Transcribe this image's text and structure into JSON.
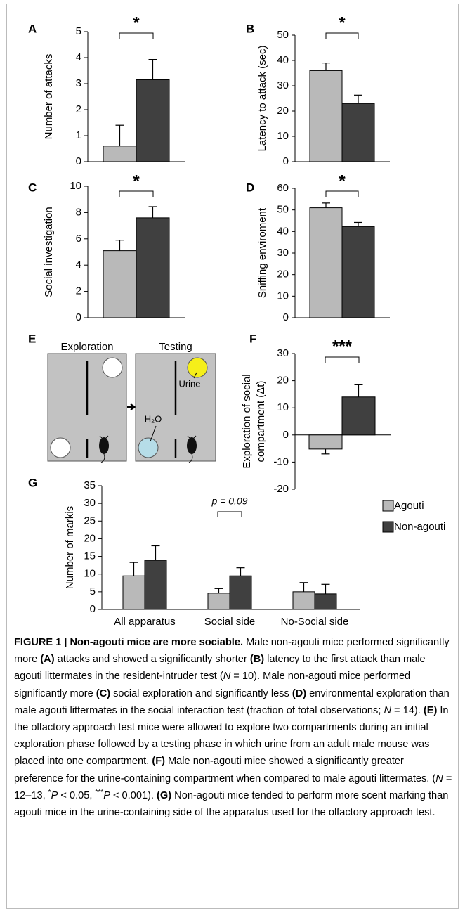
{
  "chart_data": [
    {
      "type": "bar",
      "panel_label": "A",
      "ylabel": "Number of attacks",
      "values": [
        0.6,
        3.15
      ],
      "errors": [
        0.8,
        0.78
      ],
      "colors": [
        "#b9b9b9",
        "#404040"
      ],
      "ylim": [
        0,
        5
      ],
      "yticks": [
        0,
        1,
        2,
        3,
        4,
        5
      ],
      "annotation": "*"
    },
    {
      "type": "bar",
      "panel_label": "B",
      "ylabel": "Latency to attack (sec)",
      "values": [
        36,
        23
      ],
      "errors": [
        3,
        3.3
      ],
      "colors": [
        "#b9b9b9",
        "#404040"
      ],
      "ylim": [
        0,
        50
      ],
      "yticks": [
        0,
        10,
        20,
        30,
        40,
        50
      ],
      "annotation": "*"
    },
    {
      "type": "bar",
      "panel_label": "C",
      "ylabel": "Social investigation",
      "values": [
        5.1,
        7.6
      ],
      "errors": [
        0.8,
        0.85
      ],
      "colors": [
        "#b9b9b9",
        "#404040"
      ],
      "ylim": [
        0,
        10
      ],
      "yticks": [
        0,
        2,
        4,
        6,
        8,
        10
      ],
      "annotation": "*"
    },
    {
      "type": "bar",
      "panel_label": "D",
      "ylabel": "Sniffing enviroment",
      "values": [
        51,
        42.3
      ],
      "errors": [
        2.2,
        1.9
      ],
      "colors": [
        "#b9b9b9",
        "#404040"
      ],
      "ylim": [
        0,
        60
      ],
      "yticks": [
        0,
        10,
        20,
        30,
        40,
        50,
        60
      ],
      "annotation": "*"
    },
    {
      "type": "bar",
      "panel_label": "F",
      "ylabel": [
        "Exploration of social",
        "compartment (Δt)"
      ],
      "values": [
        -5.2,
        14
      ],
      "errors": [
        1.8,
        4.5
      ],
      "colors": [
        "#b9b9b9",
        "#404040"
      ],
      "ylim": [
        -20,
        30
      ],
      "yticks": [
        -20,
        -10,
        0,
        10,
        20,
        30
      ],
      "annotation": "***"
    },
    {
      "type": "grouped-bar",
      "panel_label": "G",
      "ylabel": "Number of markis",
      "categories": [
        "All apparatus",
        "Social side",
        "No-Social side"
      ],
      "series": [
        {
          "name": "Agouti",
          "color": "#b9b9b9",
          "values": [
            9.5,
            4.6,
            5
          ],
          "errors": [
            3.8,
            1.3,
            2.6
          ]
        },
        {
          "name": "Non-agouti",
          "color": "#404040",
          "values": [
            13.9,
            9.5,
            4.4
          ],
          "errors": [
            4.1,
            2.3,
            2.7
          ]
        }
      ],
      "ylim": [
        0,
        35
      ],
      "yticks": [
        0,
        5,
        10,
        15,
        20,
        25,
        30,
        35
      ],
      "annotation": "p = 0.09",
      "legend": "upper right"
    }
  ],
  "diagram": {
    "panel_label": "E",
    "exploration": "Exploration",
    "testing": "Testing",
    "urine": "Urine",
    "water": "H₂O"
  },
  "caption": {
    "segments": [
      {
        "text": "FIGURE 1 | Non-agouti mice are more sociable.",
        "style": "bold"
      },
      {
        "text": " Male non-agouti mice performed significantly more ",
        "style": "normal"
      },
      {
        "text": "(A)",
        "style": "bold"
      },
      {
        "text": " attacks and showed a significantly shorter ",
        "style": "normal"
      },
      {
        "text": "(B)",
        "style": "bold"
      },
      {
        "text": " latency to the first attack than male agouti littermates in the resident-intruder test (",
        "style": "normal"
      },
      {
        "text": "N",
        "style": "italic"
      },
      {
        "text": " = 10). Male non-agouti mice performed significantly more ",
        "style": "normal"
      },
      {
        "text": "(C)",
        "style": "bold"
      },
      {
        "text": " social exploration and significantly less ",
        "style": "normal"
      },
      {
        "text": "(D)",
        "style": "bold"
      },
      {
        "text": " environmental exploration than male agouti littermates in the social interaction test (fraction of total observations; ",
        "style": "normal"
      },
      {
        "text": "N",
        "style": "italic"
      },
      {
        "text": " = 14). ",
        "style": "normal"
      },
      {
        "text": "(E)",
        "style": "bold"
      },
      {
        "text": " In the olfactory approach test mice were allowed to explore two compartments during an initial exploration phase followed by a testing phase in which urine from an adult male mouse was placed into one compartment. ",
        "style": "normal"
      },
      {
        "text": "(F)",
        "style": "bold"
      },
      {
        "text": " Male non-agouti mice showed a significantly greater preference for the urine-containing compartment when compared to male agouti littermates. (",
        "style": "normal"
      },
      {
        "text": "N",
        "style": "italic"
      },
      {
        "text": " = 12–13, ",
        "style": "normal"
      },
      {
        "text": "*",
        "style": "sup"
      },
      {
        "text": "P",
        "style": "italic"
      },
      {
        "text": " < 0.05, ",
        "style": "normal"
      },
      {
        "text": "***",
        "style": "sup"
      },
      {
        "text": "P",
        "style": "italic"
      },
      {
        "text": " < 0.001). ",
        "style": "normal"
      },
      {
        "text": "(G)",
        "style": "bold"
      },
      {
        "text": " Non-agouti mice tended to perform more scent marking than agouti mice in the urine-containing side of the apparatus used for the olfactory approach test.",
        "style": "normal"
      }
    ]
  }
}
